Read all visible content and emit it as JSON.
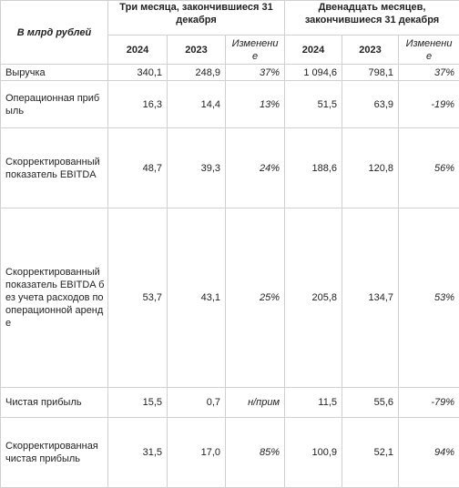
{
  "header": {
    "unit": "В млрд рублей",
    "period_3m": "Три месяца, закончившиеся 31 декабря",
    "period_12m": "Двенадцать месяцев, закончившиеся 31 декабря",
    "columns": [
      "2024",
      "2023",
      "Изменение",
      "2024",
      "2023",
      "Изменение"
    ]
  },
  "rows": [
    {
      "label": "Выручка",
      "values": [
        "340,1",
        "248,9",
        "37%",
        "1 094,6",
        "798,1",
        "37%"
      ]
    },
    {
      "label": "Операционная прибыль",
      "values": [
        "16,3",
        "14,4",
        "13%",
        "51,5",
        "63,9",
        "-19%"
      ]
    },
    {
      "label": "Скорректированный показатель EBITDA",
      "values": [
        "48,7",
        "39,3",
        "24%",
        "188,6",
        "120,8",
        "56%"
      ]
    },
    {
      "label": "Скорректированный показатель EBITDA без учета расходов по операционной аренде",
      "values": [
        "53,7",
        "43,1",
        "25%",
        "205,8",
        "134,7",
        "53%"
      ]
    },
    {
      "label": "Чистая прибыль",
      "values": [
        "15,5",
        "0,7",
        "н/прим",
        "11,5",
        "55,6",
        "-79%"
      ]
    },
    {
      "label": "Скорректированная чистая прибыль",
      "values": [
        "31,5",
        "17,0",
        "85%",
        "100,9",
        "52,1",
        "94%"
      ]
    }
  ]
}
